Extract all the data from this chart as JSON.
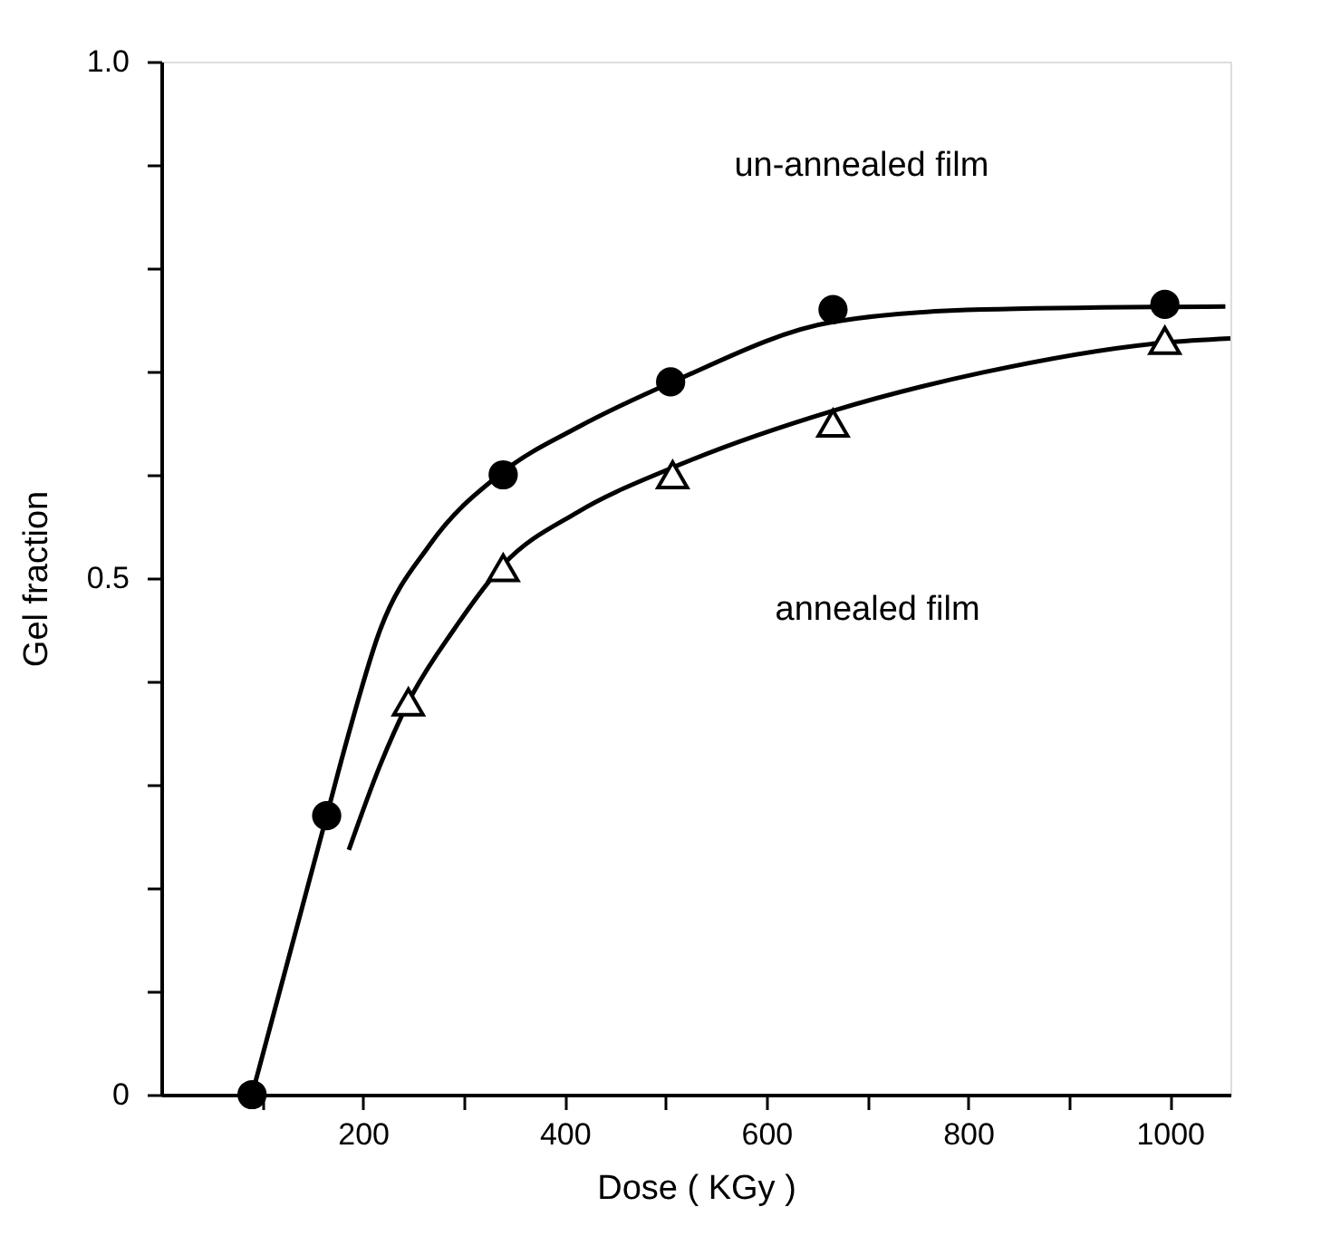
{
  "chart_data": {
    "type": "scatter",
    "xlabel": "Dose ( KGy )",
    "ylabel": "Gel fraction",
    "xlim": [
      0,
      1060
    ],
    "ylim": [
      0,
      1
    ],
    "xticks": [
      {
        "value": 100,
        "label": null
      },
      200,
      {
        "value": 300,
        "label": null
      },
      400,
      {
        "value": 500,
        "label": null
      },
      600,
      {
        "value": 700,
        "label": null
      },
      800,
      {
        "value": 900,
        "label": null
      },
      1000
    ],
    "yticks": [
      0,
      {
        "value": 0.1,
        "label": null
      },
      {
        "value": 0.2,
        "label": null
      },
      {
        "value": 0.3,
        "label": null
      },
      {
        "value": 0.4,
        "label": null
      },
      0.5,
      {
        "value": 0.6,
        "label": null
      },
      {
        "value": 0.7,
        "label": null
      },
      {
        "value": 0.8,
        "label": null
      },
      {
        "value": 0.9,
        "label": null
      },
      {
        "value": 1,
        "label": "1.0"
      }
    ],
    "grid": false,
    "series": [
      {
        "marker": "circle",
        "color": "#000000",
        "x": [
          90,
          164,
          339,
          505,
          666,
          995
        ],
        "values": [
          0,
          0.27,
          0.6,
          0.69,
          0.76,
          0.765
        ]
      },
      {
        "marker": "triangle",
        "color": "#000000",
        "x": [
          245,
          339,
          507,
          666,
          995
        ],
        "values": [
          0.38,
          0.51,
          0.6,
          0.65,
          0.73
        ]
      },
      {
        "type": "line",
        "line_style": "solid",
        "color": "#000000",
        "x": [
          90,
          164,
          184,
          217,
          266,
          339,
          413,
          505,
          666,
          814,
          1055
        ],
        "values": [
          0,
          0.27,
          0.343,
          0.45,
          0.532,
          0.603,
          0.646,
          0.689,
          0.748,
          0.76,
          0.763
        ]
      },
      {
        "type": "line",
        "line_style": "solid",
        "color": "#000000",
        "x": [
          186,
          217,
          245,
          290,
          339,
          413,
          507,
          666,
          814,
          995,
          1060
        ],
        "values": [
          0.237,
          0.319,
          0.38,
          0.45,
          0.513,
          0.564,
          0.607,
          0.662,
          0.699,
          0.728,
          0.732
        ]
      }
    ],
    "annotations": [
      "un-annealed film",
      "annealed film"
    ]
  }
}
